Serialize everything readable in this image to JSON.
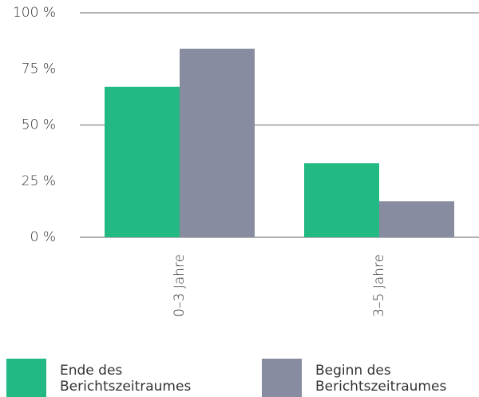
{
  "chart_data": {
    "type": "bar",
    "categories": [
      "0–3 Jahre",
      "3–5 Jahre"
    ],
    "series": [
      {
        "name": "Ende des Berichtszeitraumes",
        "color": "#22b983",
        "values": [
          67,
          33
        ]
      },
      {
        "name": "Beginn des Berichtszeitraumes",
        "color": "#878ca0",
        "values": [
          84,
          16
        ]
      }
    ],
    "ylim": [
      0,
      100
    ],
    "yticks": [
      {
        "value": 0,
        "label": "0 %"
      },
      {
        "value": 25,
        "label": "25 %"
      },
      {
        "value": 50,
        "label": "50 %"
      },
      {
        "value": 75,
        "label": "75 %"
      },
      {
        "value": 100,
        "label": "100 %"
      }
    ],
    "ygrid": [
      0,
      50,
      100
    ]
  }
}
